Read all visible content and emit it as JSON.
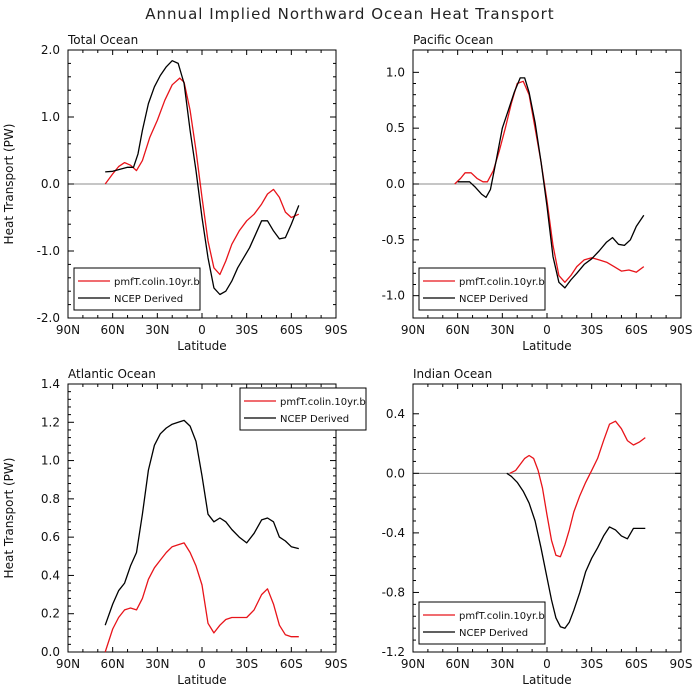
{
  "title": "Annual Implied Northward Ocean Heat Transport",
  "colors": {
    "model": "#e8141a",
    "ncep": "#000000",
    "zero": "#666666",
    "frame": "#000000"
  },
  "chart_data": [
    {
      "type": "line",
      "title": "Total Ocean",
      "xlabel": "Latitude",
      "ylabel": "Heat Transport (PW)",
      "xlim": [
        90,
        -90
      ],
      "xticks": [
        90,
        60,
        30,
        0,
        -30,
        -60,
        -90
      ],
      "xtick_labels": [
        "90N",
        "60N",
        "30N",
        "0",
        "30S",
        "60S",
        "90S"
      ],
      "ylim": [
        -2.0,
        2.0
      ],
      "yticks": [
        -2.0,
        -1.0,
        0.0,
        1.0,
        2.0
      ],
      "ytick_labels": [
        "-2.0",
        "-1.0",
        "0.0",
        "1.0",
        "2.0"
      ],
      "zero_line": true,
      "legend": {
        "position": "bottom-left",
        "entries": [
          "pmfT.colin.10yr.b",
          "NCEP Derived"
        ]
      },
      "series": [
        {
          "name": "pmfT.colin.10yr.b",
          "color": "#e8141a",
          "x": [
            65,
            60,
            56,
            52,
            48,
            44,
            40,
            35,
            30,
            25,
            20,
            15,
            12,
            8,
            4,
            0,
            -4,
            -8,
            -12,
            -16,
            -20,
            -25,
            -30,
            -35,
            -40,
            -44,
            -48,
            -52,
            -56,
            -60,
            -65
          ],
          "y": [
            0.0,
            0.15,
            0.26,
            0.32,
            0.28,
            0.2,
            0.35,
            0.7,
            0.95,
            1.25,
            1.48,
            1.58,
            1.52,
            1.1,
            0.5,
            -0.2,
            -0.85,
            -1.25,
            -1.35,
            -1.15,
            -0.9,
            -0.7,
            -0.55,
            -0.45,
            -0.3,
            -0.15,
            -0.08,
            -0.2,
            -0.42,
            -0.5,
            -0.45
          ]
        },
        {
          "name": "NCEP Derived",
          "color": "#000000",
          "x": [
            65,
            60,
            55,
            50,
            46,
            43,
            40,
            36,
            32,
            28,
            24,
            20,
            16,
            12,
            8,
            4,
            0,
            -4,
            -8,
            -12,
            -16,
            -20,
            -24,
            -28,
            -32,
            -36,
            -40,
            -44,
            -48,
            -52,
            -56,
            -60,
            -65
          ],
          "y": [
            0.18,
            0.19,
            0.22,
            0.25,
            0.25,
            0.45,
            0.8,
            1.2,
            1.45,
            1.62,
            1.75,
            1.84,
            1.8,
            1.5,
            0.8,
            0.2,
            -0.5,
            -1.1,
            -1.55,
            -1.65,
            -1.6,
            -1.45,
            -1.25,
            -1.1,
            -0.95,
            -0.75,
            -0.55,
            -0.55,
            -0.7,
            -0.82,
            -0.8,
            -0.6,
            -0.32
          ]
        }
      ]
    },
    {
      "type": "line",
      "title": "Pacific Ocean",
      "xlabel": "Latitude",
      "ylabel": "",
      "xlim": [
        90,
        -90
      ],
      "xticks": [
        90,
        60,
        30,
        0,
        -30,
        -60,
        -90
      ],
      "xtick_labels": [
        "90N",
        "60N",
        "30N",
        "0",
        "30S",
        "60S",
        "90S"
      ],
      "ylim": [
        -1.2,
        1.2
      ],
      "yticks": [
        -1.0,
        -0.5,
        0.0,
        0.5,
        1.0
      ],
      "ytick_labels": [
        "-1.0",
        "-0.5",
        "0.0",
        "0.5",
        "1.0"
      ],
      "zero_line": true,
      "legend": {
        "position": "bottom-left",
        "entries": [
          "pmfT.colin.10yr.b",
          "NCEP Derived"
        ]
      },
      "series": [
        {
          "name": "pmfT.colin.10yr.b",
          "color": "#e8141a",
          "x": [
            62,
            58,
            55,
            51,
            47,
            43,
            40,
            36,
            32,
            28,
            24,
            20,
            16,
            12,
            8,
            4,
            0,
            -4,
            -8,
            -12,
            -16,
            -20,
            -25,
            -30,
            -35,
            -40,
            -45,
            -50,
            -55,
            -60,
            -65
          ],
          "y": [
            0.0,
            0.05,
            0.1,
            0.1,
            0.05,
            0.02,
            0.02,
            0.12,
            0.3,
            0.5,
            0.72,
            0.9,
            0.92,
            0.8,
            0.5,
            0.2,
            -0.15,
            -0.55,
            -0.82,
            -0.88,
            -0.82,
            -0.74,
            -0.68,
            -0.66,
            -0.68,
            -0.7,
            -0.74,
            -0.78,
            -0.77,
            -0.79,
            -0.74
          ]
        },
        {
          "name": "NCEP Derived",
          "color": "#000000",
          "x": [
            60,
            56,
            52,
            48,
            44,
            41,
            38,
            34,
            30,
            26,
            22,
            18,
            15,
            12,
            8,
            4,
            0,
            -4,
            -8,
            -12,
            -16,
            -20,
            -25,
            -30,
            -35,
            -40,
            -44,
            -48,
            -52,
            -56,
            -60,
            -65
          ],
          "y": [
            0.02,
            0.02,
            0.02,
            -0.03,
            -0.09,
            -0.12,
            -0.05,
            0.22,
            0.5,
            0.66,
            0.82,
            0.95,
            0.95,
            0.82,
            0.55,
            0.2,
            -0.2,
            -0.65,
            -0.88,
            -0.93,
            -0.86,
            -0.8,
            -0.72,
            -0.67,
            -0.6,
            -0.52,
            -0.48,
            -0.54,
            -0.55,
            -0.5,
            -0.38,
            -0.28
          ]
        }
      ]
    },
    {
      "type": "line",
      "title": "Atlantic Ocean",
      "xlabel": "Latitude",
      "ylabel": "Heat Transport (PW)",
      "xlim": [
        90,
        -90
      ],
      "xticks": [
        90,
        60,
        30,
        0,
        -30,
        -60,
        -90
      ],
      "xtick_labels": [
        "90N",
        "60N",
        "30N",
        "0",
        "30S",
        "60S",
        "90S"
      ],
      "ylim": [
        0.0,
        1.4
      ],
      "yticks": [
        0.0,
        0.2,
        0.4,
        0.6,
        0.8,
        1.0,
        1.2,
        1.4
      ],
      "ytick_labels": [
        "0.0",
        "0.2",
        "0.4",
        "0.6",
        "0.8",
        "1.0",
        "1.2",
        "1.4"
      ],
      "zero_line": false,
      "legend": {
        "position": "top-right",
        "entries": [
          "pmfT.colin.10yr.b",
          "NCEP Derived"
        ]
      },
      "series": [
        {
          "name": "pmfT.colin.10yr.b",
          "color": "#e8141a",
          "x": [
            65,
            60,
            56,
            52,
            48,
            44,
            40,
            36,
            32,
            28,
            24,
            20,
            16,
            12,
            8,
            4,
            0,
            -4,
            -8,
            -12,
            -16,
            -20,
            -25,
            -30,
            -35,
            -40,
            -44,
            -48,
            -52,
            -56,
            -60,
            -65
          ],
          "y": [
            0.0,
            0.12,
            0.18,
            0.22,
            0.23,
            0.22,
            0.28,
            0.38,
            0.44,
            0.48,
            0.52,
            0.55,
            0.56,
            0.57,
            0.52,
            0.45,
            0.35,
            0.15,
            0.1,
            0.14,
            0.17,
            0.18,
            0.18,
            0.18,
            0.22,
            0.3,
            0.33,
            0.25,
            0.14,
            0.09,
            0.08,
            0.08
          ]
        },
        {
          "name": "NCEP Derived",
          "color": "#000000",
          "x": [
            65,
            60,
            56,
            52,
            48,
            44,
            40,
            36,
            32,
            28,
            24,
            20,
            16,
            12,
            8,
            4,
            0,
            -4,
            -8,
            -12,
            -16,
            -20,
            -25,
            -30,
            -35,
            -40,
            -44,
            -48,
            -52,
            -56,
            -60,
            -65
          ],
          "y": [
            0.14,
            0.25,
            0.32,
            0.36,
            0.45,
            0.52,
            0.72,
            0.95,
            1.08,
            1.14,
            1.17,
            1.19,
            1.2,
            1.21,
            1.18,
            1.1,
            0.92,
            0.72,
            0.68,
            0.7,
            0.68,
            0.64,
            0.6,
            0.57,
            0.62,
            0.69,
            0.7,
            0.68,
            0.6,
            0.58,
            0.55,
            0.54
          ]
        }
      ]
    },
    {
      "type": "line",
      "title": "Indian Ocean",
      "xlabel": "Latitude",
      "ylabel": "",
      "xlim": [
        90,
        -90
      ],
      "xticks": [
        90,
        60,
        30,
        0,
        -30,
        -60,
        -90
      ],
      "xtick_labels": [
        "90N",
        "60N",
        "30N",
        "0",
        "30S",
        "60S",
        "90S"
      ],
      "ylim": [
        -1.2,
        0.6
      ],
      "yticks": [
        -1.2,
        -0.8,
        -0.4,
        0.0,
        0.4
      ],
      "ytick_labels": [
        "-1.2",
        "-0.8",
        "-0.4",
        "0.0",
        "0.4"
      ],
      "zero_line": true,
      "legend": {
        "position": "bottom-left",
        "entries": [
          "pmfT.colin.10yr.b",
          "NCEP Derived"
        ]
      },
      "series": [
        {
          "name": "pmfT.colin.10yr.b",
          "color": "#e8141a",
          "x": [
            25,
            21,
            18,
            15,
            12,
            9,
            6,
            3,
            0,
            -3,
            -6,
            -9,
            -12,
            -15,
            -18,
            -22,
            -26,
            -30,
            -34,
            -38,
            -42,
            -46,
            -50,
            -54,
            -58,
            -62,
            -66
          ],
          "y": [
            0.0,
            0.02,
            0.06,
            0.1,
            0.12,
            0.1,
            0.02,
            -0.1,
            -0.28,
            -0.45,
            -0.55,
            -0.56,
            -0.48,
            -0.38,
            -0.26,
            -0.15,
            -0.06,
            0.02,
            0.1,
            0.22,
            0.33,
            0.35,
            0.3,
            0.22,
            0.19,
            0.21,
            0.24
          ]
        },
        {
          "name": "NCEP Derived",
          "color": "#000000",
          "x": [
            27,
            24,
            20,
            16,
            12,
            8,
            4,
            0,
            -3,
            -6,
            -9,
            -12,
            -15,
            -18,
            -22,
            -26,
            -30,
            -34,
            -38,
            -42,
            -46,
            -50,
            -54,
            -58,
            -62,
            -66
          ],
          "y": [
            0.0,
            -0.02,
            -0.06,
            -0.12,
            -0.2,
            -0.32,
            -0.5,
            -0.7,
            -0.85,
            -0.97,
            -1.03,
            -1.04,
            -1.0,
            -0.92,
            -0.8,
            -0.66,
            -0.57,
            -0.5,
            -0.42,
            -0.36,
            -0.38,
            -0.42,
            -0.44,
            -0.37,
            -0.37,
            -0.37
          ]
        }
      ]
    }
  ]
}
